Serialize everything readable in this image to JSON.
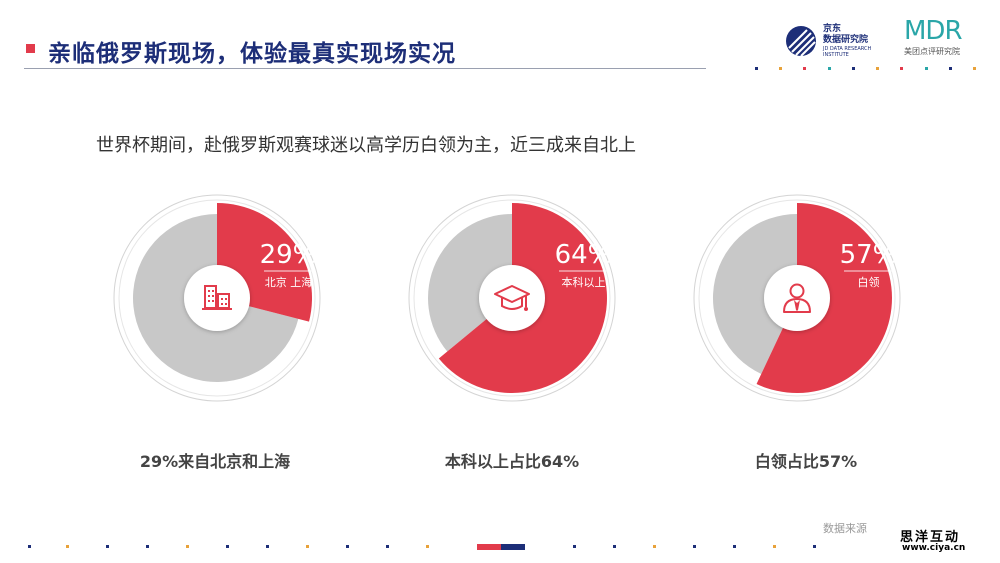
{
  "header": {
    "title": "亲临俄罗斯现场，体验最真实现场实况",
    "logo_jd_cn_line1": "京东",
    "logo_jd_cn_line2": "数据研究院",
    "logo_jd_en": "JD DATA RESEARCH INSTITUTE",
    "logo_mdr_word": "MDR",
    "logo_mdr_cn": "美团点评研究院"
  },
  "subtitle": "世界杯期间，赴俄罗斯观赛球迷以高学历白领为主，近三成来自北上",
  "chart_data": [
    {
      "type": "pie",
      "value_percent": 29,
      "value_label": "29%",
      "slice_label": "北京 上海",
      "icon": "building-icon",
      "caption": "29%来自北京和上海",
      "highlight_color": "#e23b4b",
      "rest_color": "#c8c8c8"
    },
    {
      "type": "pie",
      "value_percent": 64,
      "value_label": "64%",
      "slice_label": "本科以上",
      "icon": "graduation-cap-icon",
      "caption": "本科以上占比64%",
      "highlight_color": "#e23b4b",
      "rest_color": "#c8c8c8"
    },
    {
      "type": "pie",
      "value_percent": 57,
      "value_label": "57%",
      "slice_label": "白领",
      "icon": "white-collar-person-icon",
      "caption": "白领占比57%",
      "highlight_color": "#e23b4b",
      "rest_color": "#c8c8c8"
    }
  ],
  "footer": {
    "source": "数据来源",
    "brand_cn": "思洋互动",
    "brand_url": "www.ciya.cn"
  },
  "colors": {
    "accent_red": "#e23b4b",
    "navy": "#1d2e78",
    "gray_slice": "#c8c8c8"
  }
}
